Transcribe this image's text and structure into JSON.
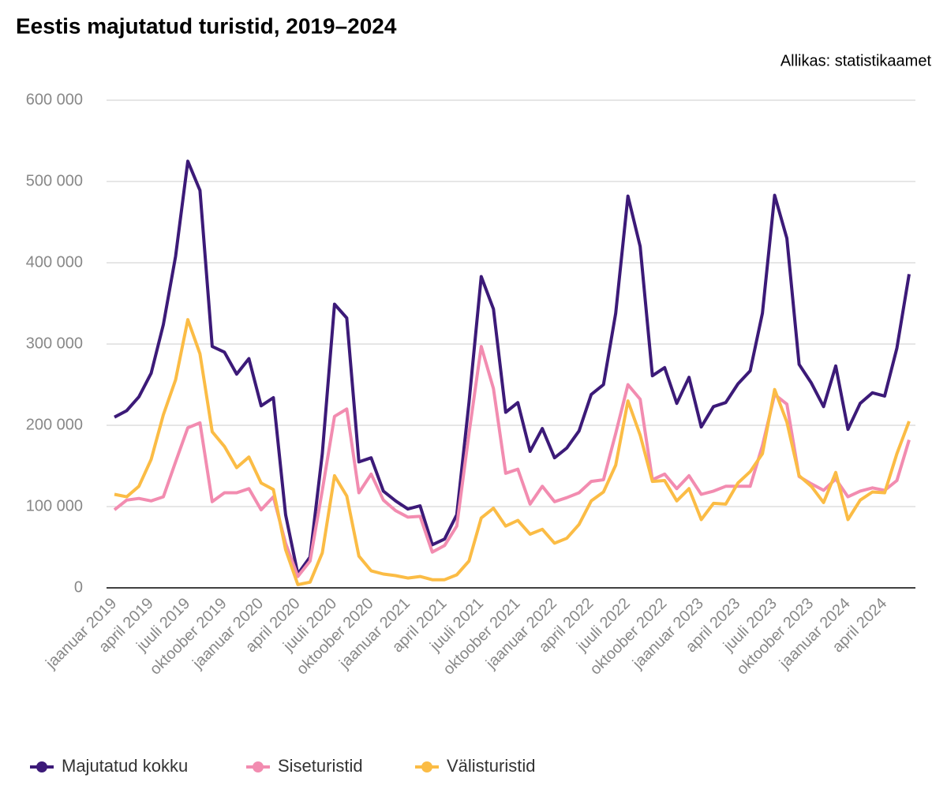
{
  "chart_data": {
    "type": "line",
    "title": "Eestis majutatud turistid, 2019–2024",
    "source": "Allikas: statistikaamet",
    "categories": [
      "jaanuar 2019",
      null,
      null,
      "april 2019",
      null,
      null,
      "juuli 2019",
      null,
      null,
      "oktoober 2019",
      null,
      null,
      "jaanuar 2020",
      null,
      null,
      "april 2020",
      null,
      null,
      "juuli 2020",
      null,
      null,
      "oktoober 2020",
      null,
      null,
      "jaanuar 2021",
      null,
      null,
      "april 2021",
      null,
      null,
      "juuli 2021",
      null,
      null,
      "oktoober 2021",
      null,
      null,
      "jaanuar 2022",
      null,
      null,
      "april 2022",
      null,
      null,
      "juuli 2022",
      null,
      null,
      "oktoober 2022",
      null,
      null,
      "jaanuar 2023",
      null,
      null,
      "april 2023",
      null,
      null,
      "juuli 2023",
      null,
      null,
      "oktoober 2023",
      null,
      null,
      "jaanuar 2024",
      null,
      null,
      "april 2024",
      null,
      null
    ],
    "series": [
      {
        "name": "Majutatud kokku",
        "color": "#3c1a78",
        "values": [
          210000,
          218000,
          235000,
          264000,
          324000,
          408000,
          525000,
          489000,
          297000,
          290000,
          263000,
          282000,
          224000,
          234000,
          90000,
          17000,
          38000,
          165000,
          349000,
          332000,
          155000,
          160000,
          119000,
          107000,
          97000,
          101000,
          53000,
          60000,
          90000,
          228000,
          383000,
          343000,
          216000,
          228000,
          168000,
          196000,
          160000,
          172000,
          193000,
          238000,
          250000,
          338000,
          482000,
          420000,
          261000,
          271000,
          227000,
          259000,
          198000,
          223000,
          228000,
          251000,
          267000,
          338000,
          483000,
          430000,
          275000,
          252000,
          223000,
          273000,
          195000,
          227000,
          240000,
          236000,
          295000,
          386000
        ]
      },
      {
        "name": "Siseturistid",
        "color": "#f28cb0",
        "values": [
          96000,
          108000,
          110000,
          107000,
          112000,
          155000,
          197000,
          203000,
          106000,
          117000,
          117000,
          122000,
          96000,
          112000,
          55000,
          14000,
          33000,
          120000,
          211000,
          220000,
          117000,
          140000,
          108000,
          95000,
          87000,
          88000,
          44000,
          52000,
          76000,
          190000,
          297000,
          245000,
          141000,
          146000,
          103000,
          125000,
          106000,
          111000,
          117000,
          131000,
          133000,
          190000,
          250000,
          232000,
          133000,
          140000,
          122000,
          138000,
          115000,
          119000,
          125000,
          125000,
          125000,
          175000,
          238000,
          226000,
          137000,
          128000,
          120000,
          134000,
          112000,
          119000,
          123000,
          120000,
          132000,
          182000
        ]
      },
      {
        "name": "Välisturistid",
        "color": "#fbbc45",
        "values": [
          115000,
          112000,
          125000,
          158000,
          213000,
          256000,
          330000,
          288000,
          192000,
          174000,
          148000,
          161000,
          129000,
          121000,
          47000,
          4000,
          7000,
          43000,
          138000,
          113000,
          39000,
          21000,
          17000,
          15000,
          12000,
          14000,
          10000,
          10000,
          16000,
          33000,
          86000,
          98000,
          76000,
          83000,
          66000,
          72000,
          55000,
          61000,
          78000,
          107000,
          118000,
          151000,
          230000,
          188000,
          131000,
          132000,
          107000,
          122000,
          84000,
          104000,
          103000,
          129000,
          143000,
          165000,
          244000,
          204000,
          138000,
          125000,
          105000,
          142000,
          84000,
          108000,
          118000,
          117000,
          165000,
          205000
        ]
      }
    ],
    "ylim": [
      0,
      600000
    ],
    "yticks": [
      0,
      {
        "value": 100000,
        "label": "100 000"
      },
      {
        "value": 200000,
        "label": "200 000"
      },
      {
        "value": 300000,
        "label": "300 000"
      },
      {
        "value": 400000,
        "label": "400 000"
      },
      {
        "value": 500000,
        "label": "500 000"
      },
      {
        "value": 600000,
        "label": "600 000"
      }
    ],
    "grid": true,
    "legend": "bottom"
  }
}
